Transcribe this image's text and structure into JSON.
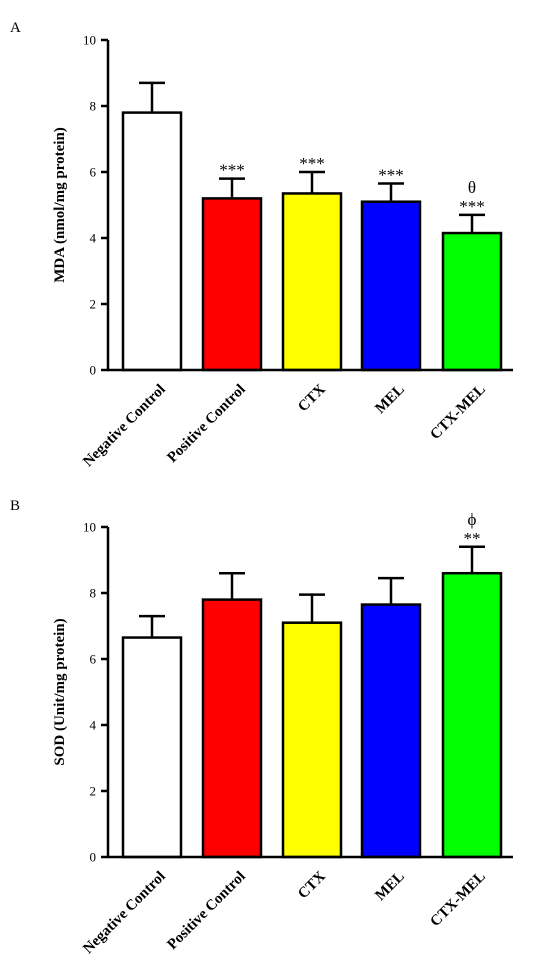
{
  "chart_data": [
    {
      "panel": "A",
      "type": "bar",
      "categories": [
        "Negative Control",
        "Positive Control",
        "CTX",
        "MEL",
        "CTX-MEL"
      ],
      "values": [
        7.8,
        5.2,
        5.35,
        5.1,
        4.15
      ],
      "errors": [
        0.9,
        0.6,
        0.65,
        0.55,
        0.55
      ],
      "annotations": [
        "",
        "***",
        "***",
        "***",
        "***"
      ],
      "annotations2": [
        "",
        "",
        "",
        "",
        "θ"
      ],
      "colors": [
        "#ffffff",
        "#ff0000",
        "#ffff00",
        "#0000ff",
        "#00ff00"
      ],
      "ylabel": "MDA (nmol/mg protein)",
      "ylim": [
        0,
        10
      ],
      "yticks": [
        "0",
        "2",
        "4",
        "6",
        "8",
        "10"
      ],
      "grid": false
    },
    {
      "panel": "B",
      "type": "bar",
      "categories": [
        "Negative Control",
        "Positive Control",
        "CTX",
        "MEL",
        "CTX-MEL"
      ],
      "values": [
        6.65,
        7.8,
        7.1,
        7.65,
        8.6
      ],
      "errors": [
        0.65,
        0.8,
        0.85,
        0.8,
        0.8
      ],
      "annotations": [
        "",
        "",
        "",
        "",
        "**"
      ],
      "annotations2": [
        "",
        "",
        "",
        "",
        "ϕ"
      ],
      "colors": [
        "#ffffff",
        "#ff0000",
        "#ffff00",
        "#0000ff",
        "#00ff00"
      ],
      "ylabel": "SOD (Unit/mg protein)",
      "ylim": [
        0,
        10
      ],
      "yticks": [
        "0",
        "2",
        "4",
        "6",
        "8",
        "10"
      ],
      "grid": false
    }
  ]
}
